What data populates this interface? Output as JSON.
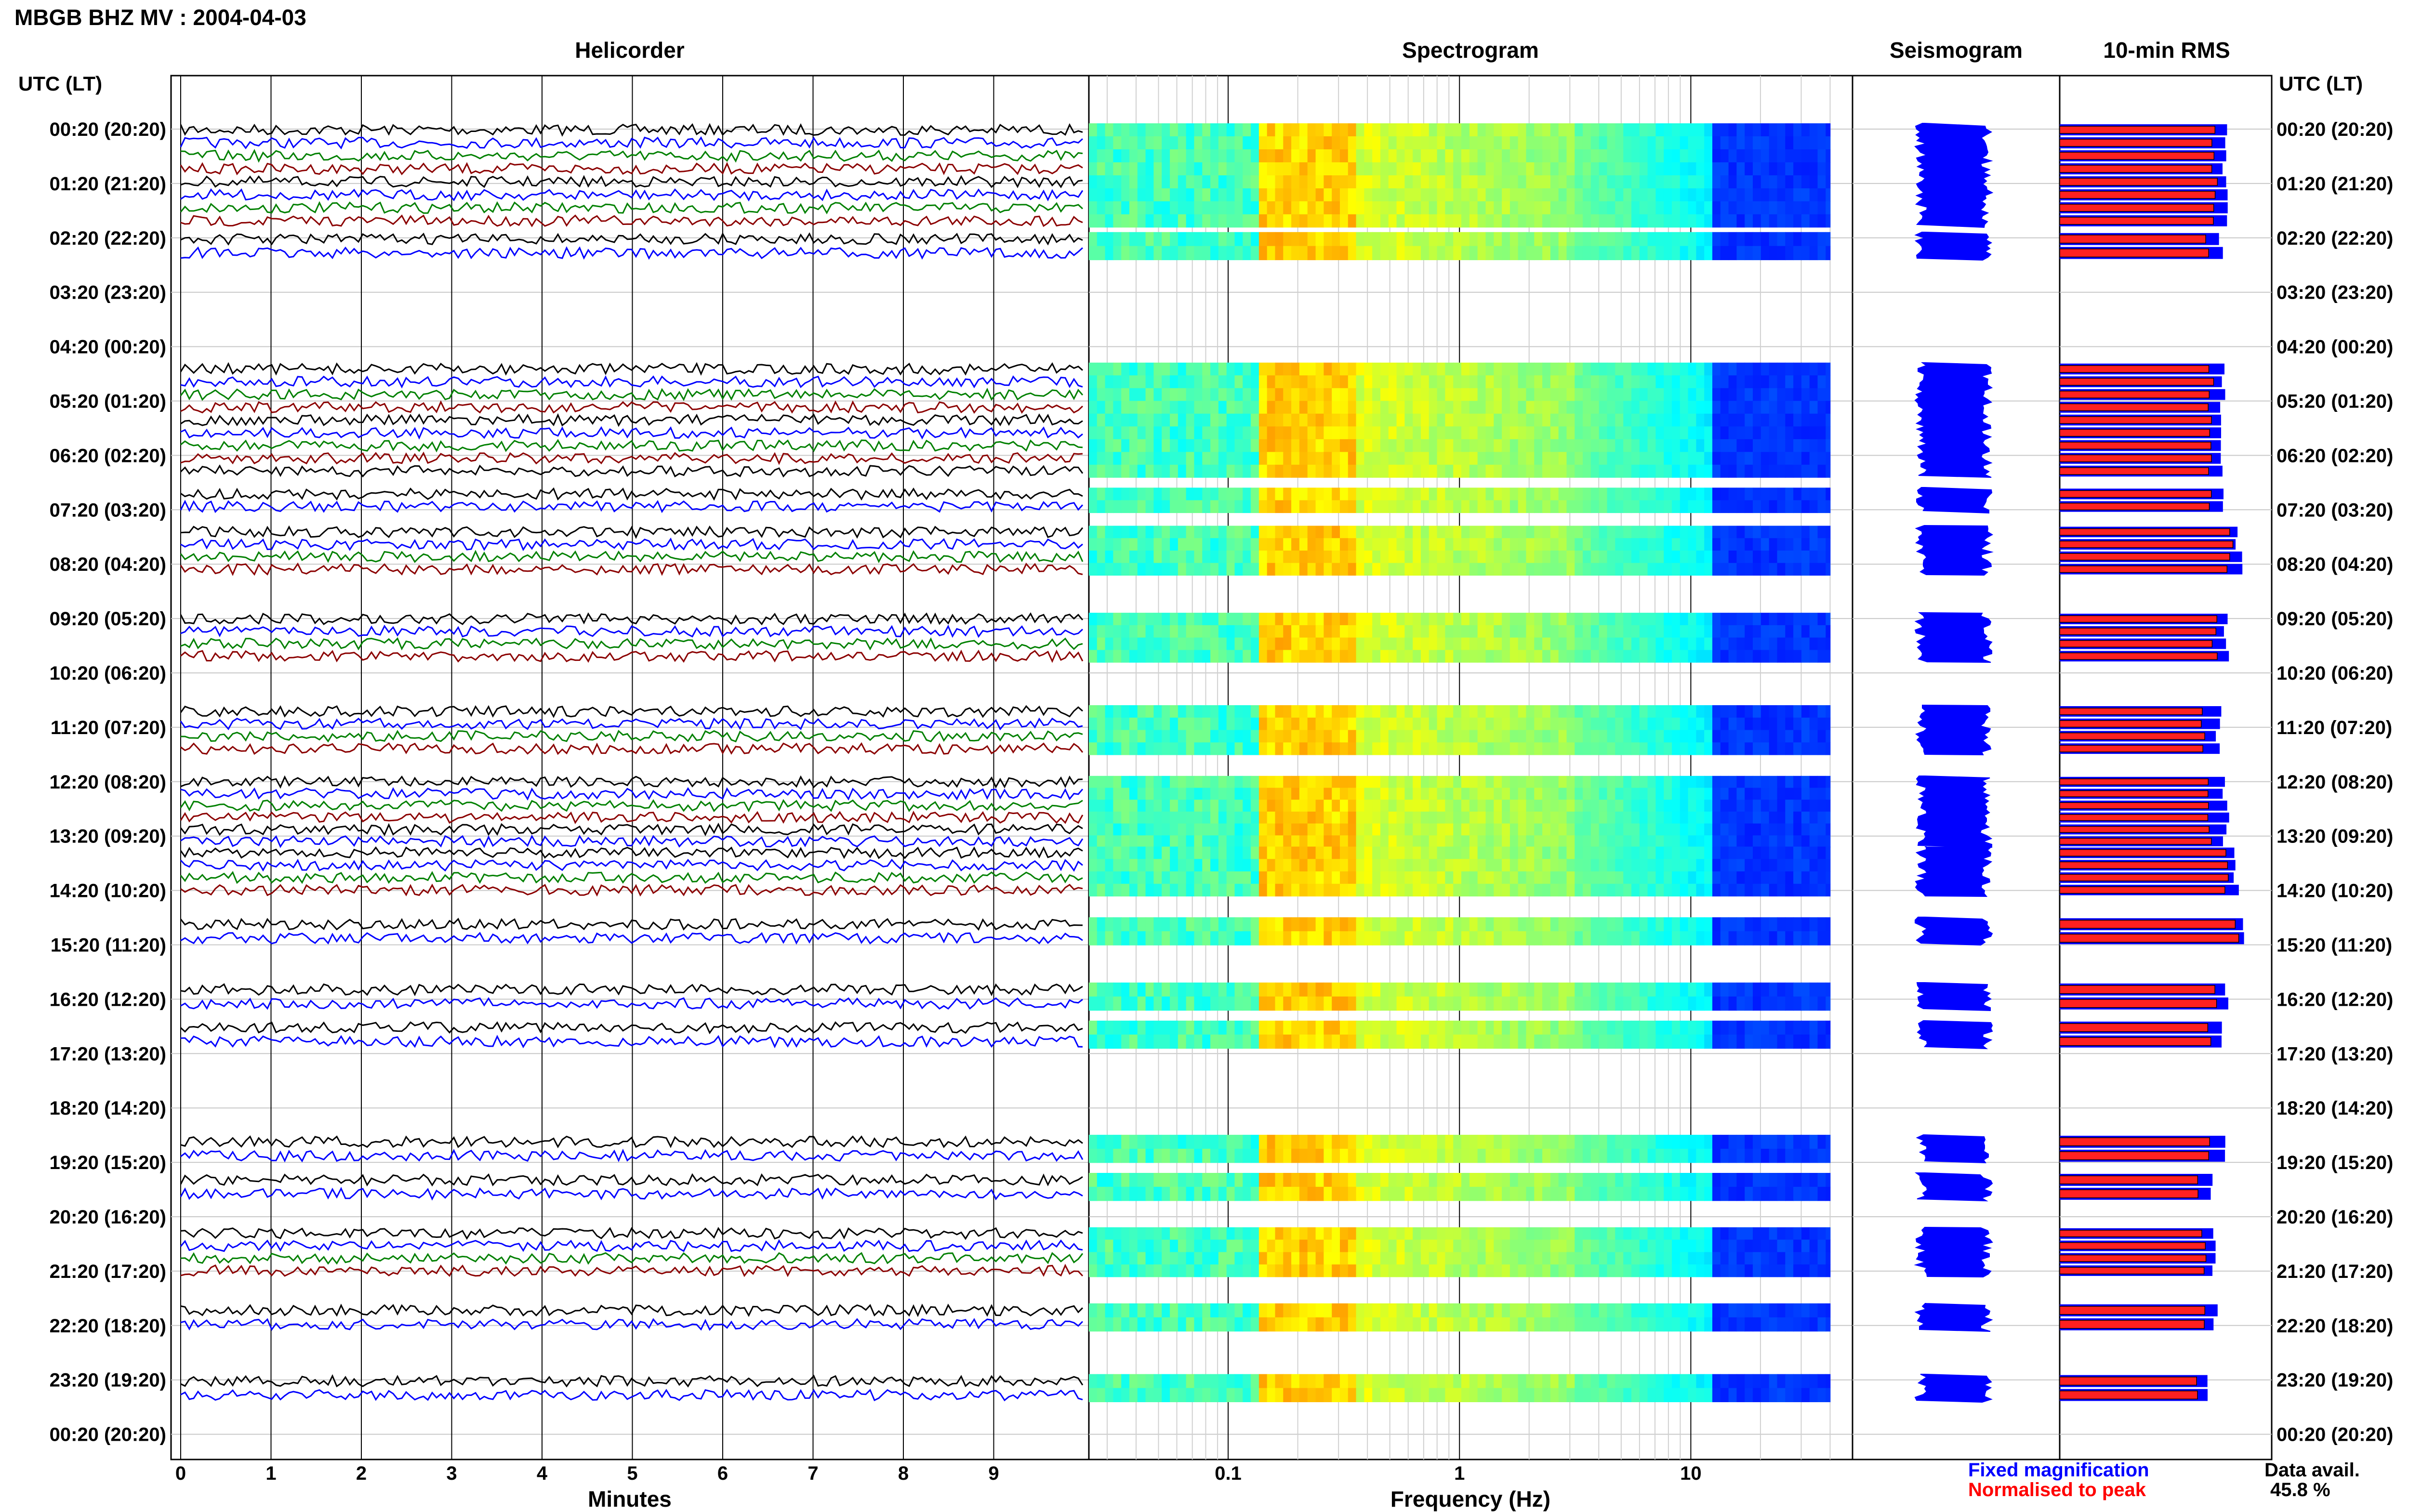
{
  "header": {
    "station_title": "MBGB BHZ MV : 2004-04-03",
    "left_axis_label": "UTC (LT)",
    "right_axis_label": "UTC (LT)"
  },
  "panels": {
    "helicorder": "Helicorder",
    "spectrogram": "Spectrogram",
    "seismogram": "Seismogram",
    "rms": "10-min RMS"
  },
  "axes": {
    "helicorder_xlabel": "Minutes",
    "spectrogram_xlabel": "Frequency (Hz)"
  },
  "legend": {
    "fixed": "Fixed magnification",
    "normalised": "Normalised to peak",
    "fixed_color": "#0000ff",
    "normalised_color": "#ff0000"
  },
  "availability": {
    "label": "Data avail.",
    "value": "45.8 %"
  },
  "chart_data": {
    "type": "heatmap",
    "hour_labels": [
      "00:20 (20:20)",
      "01:20 (21:20)",
      "02:20 (22:20)",
      "03:20 (23:20)",
      "04:20 (00:20)",
      "05:20 (01:20)",
      "06:20 (02:20)",
      "07:20 (03:20)",
      "08:20 (04:20)",
      "09:20 (05:20)",
      "10:20 (06:20)",
      "11:20 (07:20)",
      "12:20 (08:20)",
      "13:20 (09:20)",
      "14:20 (10:20)",
      "15:20 (11:20)",
      "16:20 (12:20)",
      "17:20 (13:20)",
      "18:20 (14:20)",
      "19:20 (15:20)",
      "20:20 (16:20)",
      "21:20 (17:20)",
      "22:20 (18:20)",
      "23:20 (19:20)",
      "00:20 (20:20)"
    ],
    "minute_ticks": [
      "0",
      "1",
      "2",
      "3",
      "4",
      "5",
      "6",
      "7",
      "8",
      "9"
    ],
    "minutes_xlim": [
      0,
      10
    ],
    "freq_ticks": [
      {
        "value": 0.1,
        "label": "0.1"
      },
      {
        "value": 1,
        "label": "1"
      },
      {
        "value": 10,
        "label": "10"
      }
    ],
    "freq_xlim": [
      0.025,
      50
    ],
    "freq_xscale": "log",
    "trace_colors": [
      "#000000",
      "#0000ff",
      "#008000",
      "#8b0000"
    ],
    "data_blocks": [
      {
        "start_hour": 0.0,
        "end_hour": 1.7,
        "rms_fixed": 0.88,
        "rms_norm": 0.82
      },
      {
        "start_hour": 2.0,
        "end_hour": 2.3,
        "rms_fixed": 0.86,
        "rms_norm": 0.78
      },
      {
        "start_hour": 4.4,
        "end_hour": 6.3,
        "rms_fixed": 0.86,
        "rms_norm": 0.8
      },
      {
        "start_hour": 6.7,
        "end_hour": 6.95,
        "rms_fixed": 0.86,
        "rms_norm": 0.8
      },
      {
        "start_hour": 7.4,
        "end_hour": 8.1,
        "rms_fixed": 0.95,
        "rms_norm": 0.9
      },
      {
        "start_hour": 9.0,
        "end_hour": 9.7,
        "rms_fixed": 0.88,
        "rms_norm": 0.82
      },
      {
        "start_hour": 10.7,
        "end_hour": 11.4,
        "rms_fixed": 0.84,
        "rms_norm": 0.76
      },
      {
        "start_hour": 12.0,
        "end_hour": 13.1,
        "rms_fixed": 0.88,
        "rms_norm": 0.8
      },
      {
        "start_hour": 13.3,
        "end_hour": 14.0,
        "rms_fixed": 0.94,
        "rms_norm": 0.88
      },
      {
        "start_hour": 14.6,
        "end_hour": 14.9,
        "rms_fixed": 0.98,
        "rms_norm": 0.94
      },
      {
        "start_hour": 15.8,
        "end_hour": 16.1,
        "rms_fixed": 0.88,
        "rms_norm": 0.82
      },
      {
        "start_hour": 16.5,
        "end_hour": 16.8,
        "rms_fixed": 0.86,
        "rms_norm": 0.8
      },
      {
        "start_hour": 18.6,
        "end_hour": 18.9,
        "rms_fixed": 0.86,
        "rms_norm": 0.78
      },
      {
        "start_hour": 19.3,
        "end_hour": 19.6,
        "rms_fixed": 0.8,
        "rms_norm": 0.74
      },
      {
        "start_hour": 20.3,
        "end_hour": 21.0,
        "rms_fixed": 0.82,
        "rms_norm": 0.76
      },
      {
        "start_hour": 21.7,
        "end_hour": 22.0,
        "rms_fixed": 0.82,
        "rms_norm": 0.76
      },
      {
        "start_hour": 23.0,
        "end_hour": 23.3,
        "rms_fixed": 0.78,
        "rms_norm": 0.72
      }
    ]
  }
}
